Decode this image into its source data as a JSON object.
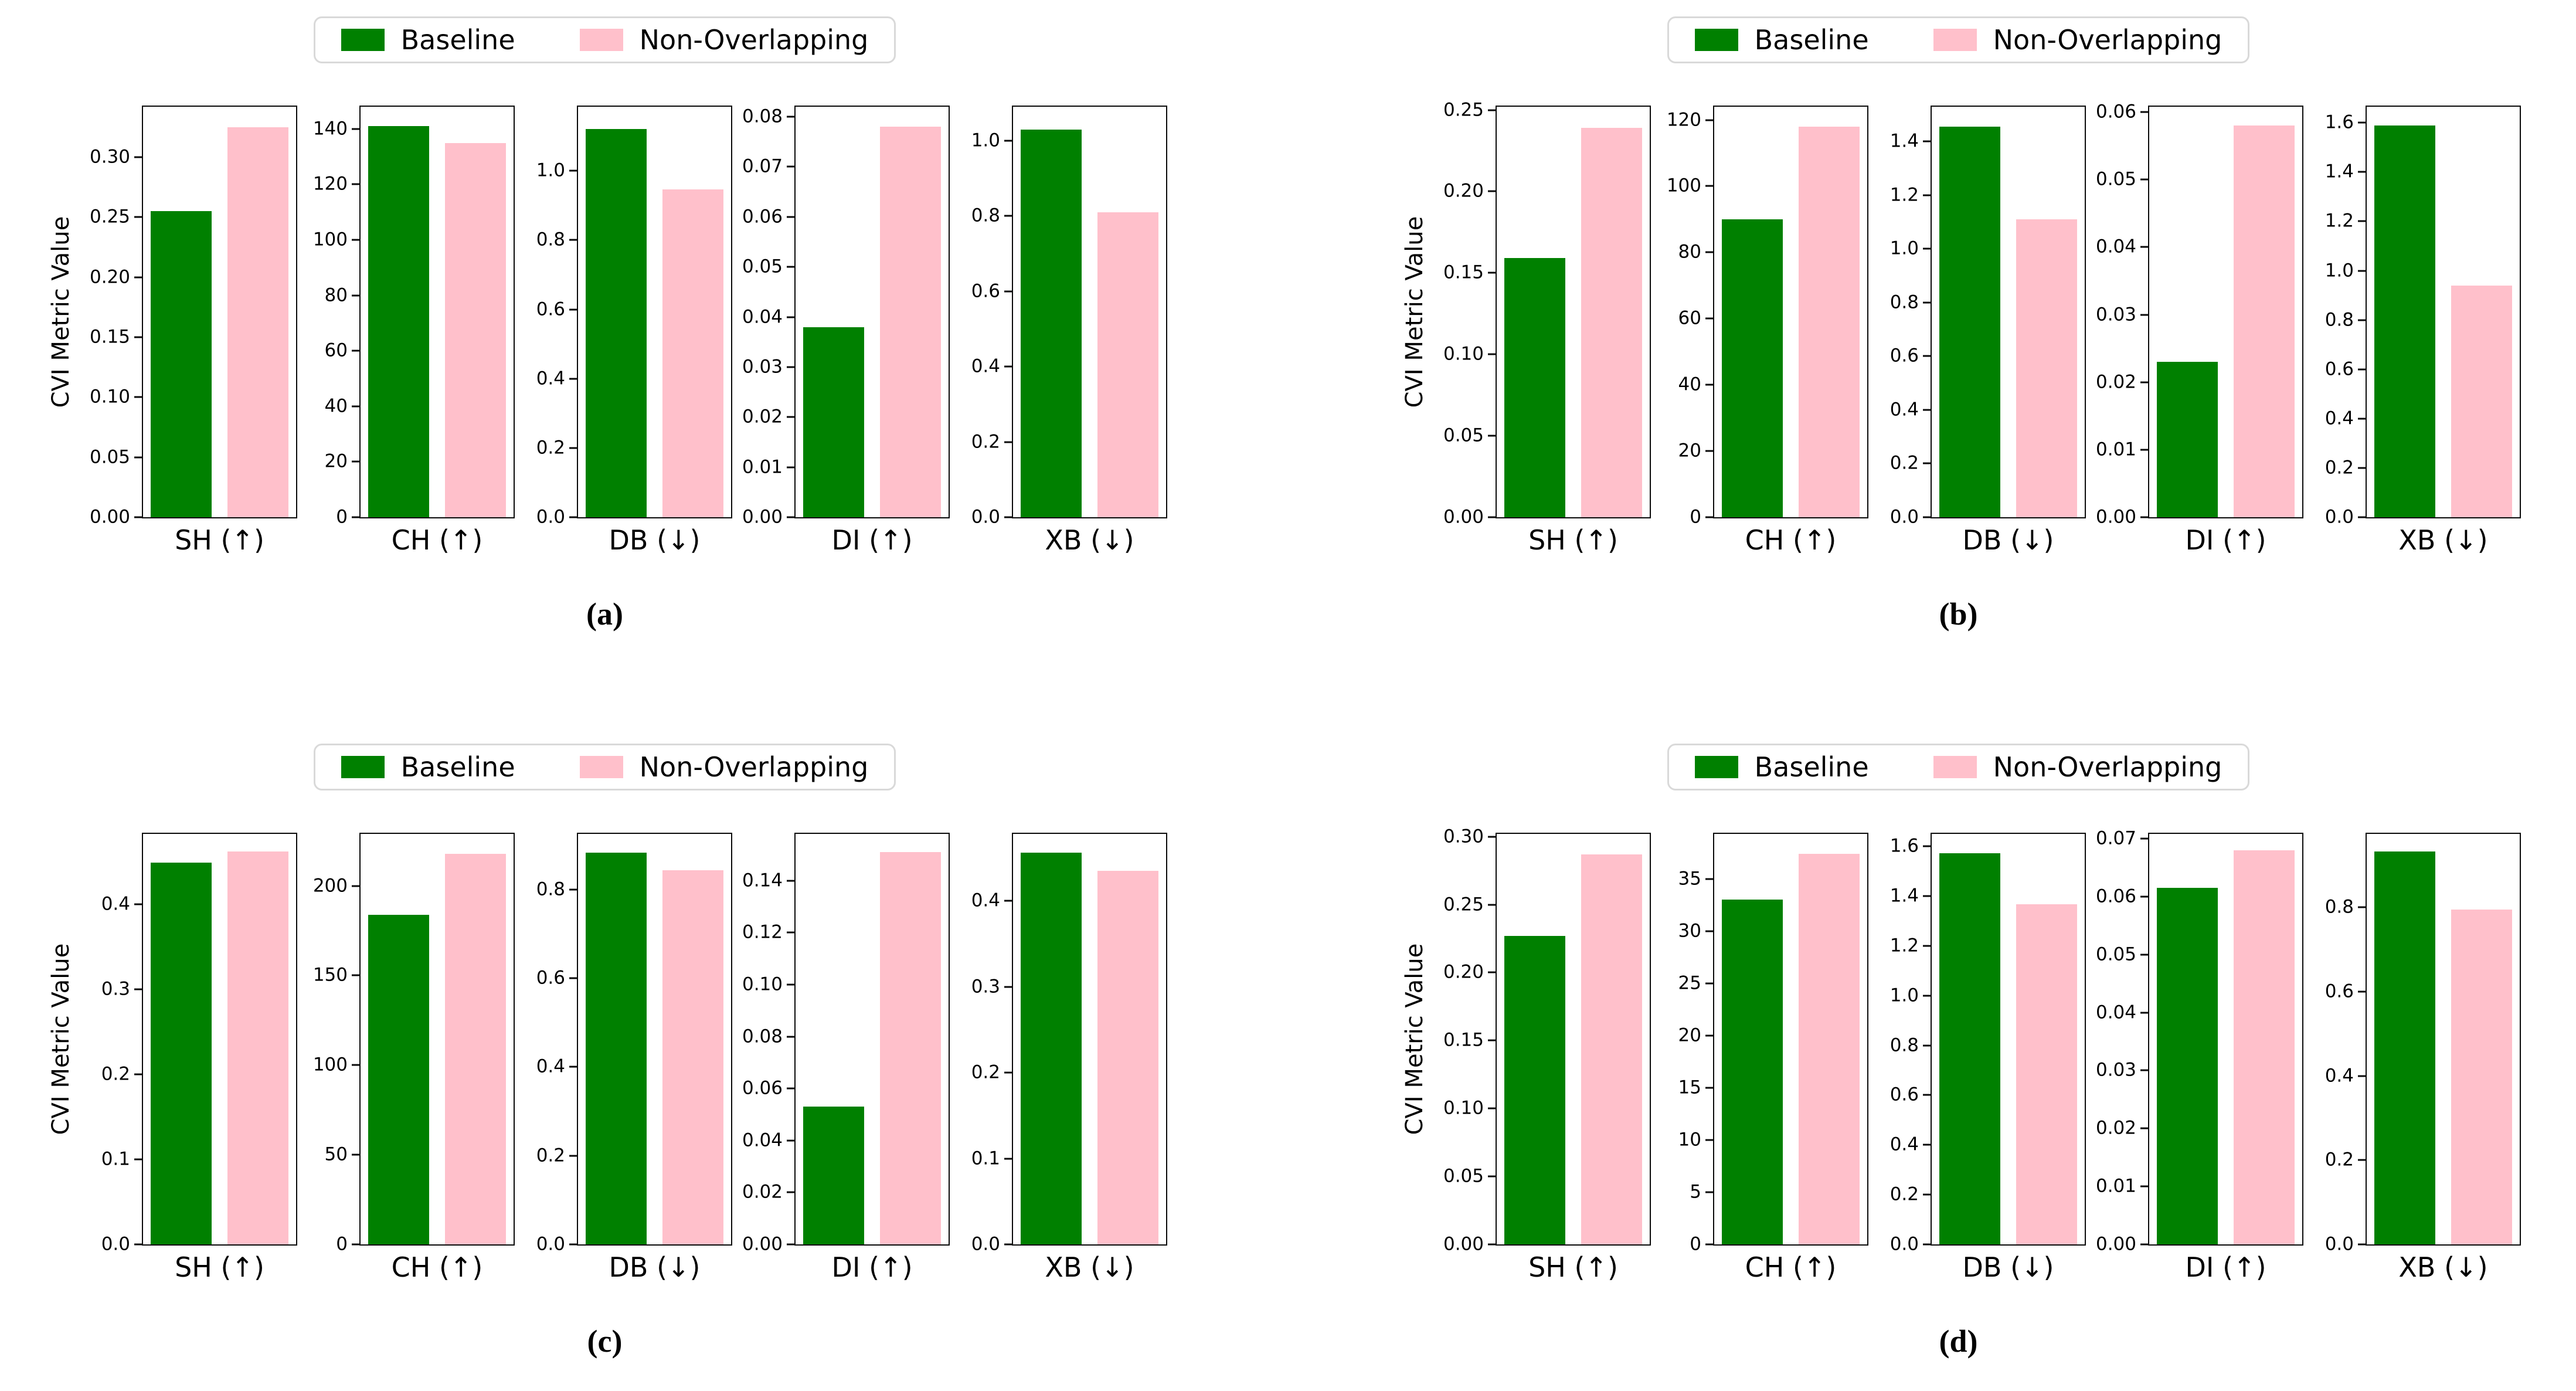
{
  "legend": {
    "items": [
      {
        "label": "Baseline",
        "color": "#008000"
      },
      {
        "label": "Non-Overlapping",
        "color": "#FFC0CB"
      }
    ]
  },
  "chart_data": [
    {
      "panel": "a",
      "caption": "(a)",
      "type": "bar",
      "ylabel": "CVI Metric Value",
      "legend": [
        "Baseline",
        "Non-Overlapping"
      ],
      "charts": [
        {
          "id": "sh",
          "label": "SH (↑)",
          "ylim": [
            0,
            0.342
          ],
          "ticks": [
            0,
            0.05,
            0.1,
            0.15,
            0.2,
            0.25,
            0.3
          ],
          "tick_labels": [
            "0.00",
            "0.05",
            "0.10",
            "0.15",
            "0.20",
            "0.25",
            "0.30"
          ],
          "values": [
            0.255,
            0.325
          ]
        },
        {
          "id": "ch",
          "label": "CH (↑)",
          "ylim": [
            0,
            148
          ],
          "ticks": [
            0,
            20,
            40,
            60,
            80,
            100,
            120,
            140
          ],
          "tick_labels": [
            "0",
            "20",
            "40",
            "60",
            "80",
            "100",
            "120",
            "140"
          ],
          "values": [
            141,
            135
          ]
        },
        {
          "id": "db",
          "label": "DB (↓)",
          "ylim": [
            0,
            1.185
          ],
          "ticks": [
            0,
            0.2,
            0.4,
            0.6,
            0.8,
            1.0
          ],
          "tick_labels": [
            "0.0",
            "0.2",
            "0.4",
            "0.6",
            "0.8",
            "1.0"
          ],
          "values": [
            1.12,
            0.947
          ]
        },
        {
          "id": "di",
          "label": "DI (↑)",
          "ylim": [
            0,
            0.082
          ],
          "ticks": [
            0,
            0.01,
            0.02,
            0.03,
            0.04,
            0.05,
            0.06,
            0.07,
            0.08
          ],
          "tick_labels": [
            "0.00",
            "0.01",
            "0.02",
            "0.03",
            "0.04",
            "0.05",
            "0.06",
            "0.07",
            "0.08"
          ],
          "values": [
            0.038,
            0.078
          ]
        },
        {
          "id": "xb",
          "label": "XB (↓)",
          "ylim": [
            0,
            1.09
          ],
          "ticks": [
            0,
            0.2,
            0.4,
            0.6,
            0.8,
            1.0
          ],
          "tick_labels": [
            "0.0",
            "0.2",
            "0.4",
            "0.6",
            "0.8",
            "1.0"
          ],
          "values": [
            1.03,
            0.81
          ]
        }
      ]
    },
    {
      "panel": "b",
      "caption": "(b)",
      "type": "bar",
      "ylabel": "CVI Metric Value",
      "legend": [
        "Baseline",
        "Non-Overlapping"
      ],
      "charts": [
        {
          "id": "sh",
          "label": "SH (↑)",
          "ylim": [
            0,
            0.252
          ],
          "ticks": [
            0,
            0.05,
            0.1,
            0.15,
            0.2,
            0.25
          ],
          "tick_labels": [
            "0.00",
            "0.05",
            "0.10",
            "0.15",
            "0.20",
            "0.25"
          ],
          "values": [
            0.159,
            0.239
          ]
        },
        {
          "id": "ch",
          "label": "CH (↑)",
          "ylim": [
            0,
            124
          ],
          "ticks": [
            0,
            20,
            40,
            60,
            80,
            100,
            120
          ],
          "tick_labels": [
            "0",
            "20",
            "40",
            "60",
            "80",
            "100",
            "120"
          ],
          "values": [
            90,
            118
          ]
        },
        {
          "id": "db",
          "label": "DB (↓)",
          "ylim": [
            0,
            1.53
          ],
          "ticks": [
            0,
            0.2,
            0.4,
            0.6,
            0.8,
            1.0,
            1.2,
            1.4
          ],
          "tick_labels": [
            "0.0",
            "0.2",
            "0.4",
            "0.6",
            "0.8",
            "1.0",
            "1.2",
            "1.4"
          ],
          "values": [
            1.455,
            1.11
          ]
        },
        {
          "id": "di",
          "label": "DI (↑)",
          "ylim": [
            0,
            0.0608
          ],
          "ticks": [
            0,
            0.01,
            0.02,
            0.03,
            0.04,
            0.05,
            0.06
          ],
          "tick_labels": [
            "0.00",
            "0.01",
            "0.02",
            "0.03",
            "0.04",
            "0.05",
            "0.06"
          ],
          "values": [
            0.023,
            0.058
          ]
        },
        {
          "id": "xb",
          "label": "XB (↓)",
          "ylim": [
            0,
            1.665
          ],
          "ticks": [
            0,
            0.2,
            0.4,
            0.6,
            0.8,
            1.0,
            1.2,
            1.4,
            1.6
          ],
          "tick_labels": [
            "0.0",
            "0.2",
            "0.4",
            "0.6",
            "0.8",
            "1.0",
            "1.2",
            "1.4",
            "1.6"
          ],
          "values": [
            1.59,
            0.94
          ]
        }
      ]
    },
    {
      "panel": "c",
      "caption": "(c)",
      "type": "bar",
      "ylabel": "CVI Metric Value",
      "legend": [
        "Baseline",
        "Non-Overlapping"
      ],
      "charts": [
        {
          "id": "sh",
          "label": "SH (↑)",
          "ylim": [
            0,
            0.483
          ],
          "ticks": [
            0,
            0.1,
            0.2,
            0.3,
            0.4
          ],
          "tick_labels": [
            "0.0",
            "0.1",
            "0.2",
            "0.3",
            "0.4"
          ],
          "values": [
            0.449,
            0.462
          ]
        },
        {
          "id": "ch",
          "label": "CH (↑)",
          "ylim": [
            0,
            229
          ],
          "ticks": [
            0,
            50,
            100,
            150,
            200
          ],
          "tick_labels": [
            "0",
            "50",
            "100",
            "150",
            "200"
          ],
          "values": [
            184,
            218
          ]
        },
        {
          "id": "db",
          "label": "DB (↓)",
          "ylim": [
            0,
            0.925
          ],
          "ticks": [
            0,
            0.2,
            0.4,
            0.6,
            0.8
          ],
          "tick_labels": [
            "0.0",
            "0.2",
            "0.4",
            "0.6",
            "0.8"
          ],
          "values": [
            0.883,
            0.843
          ]
        },
        {
          "id": "di",
          "label": "DI (↑)",
          "ylim": [
            0,
            0.158
          ],
          "ticks": [
            0,
            0.02,
            0.04,
            0.06,
            0.08,
            0.1,
            0.12,
            0.14
          ],
          "tick_labels": [
            "0.00",
            "0.02",
            "0.04",
            "0.06",
            "0.08",
            "0.10",
            "0.12",
            "0.14"
          ],
          "values": [
            0.053,
            0.151
          ]
        },
        {
          "id": "xb",
          "label": "XB (↓)",
          "ylim": [
            0,
            0.478
          ],
          "ticks": [
            0,
            0.1,
            0.2,
            0.3,
            0.4
          ],
          "tick_labels": [
            "0.0",
            "0.1",
            "0.2",
            "0.3",
            "0.4"
          ],
          "values": [
            0.456,
            0.435
          ]
        }
      ]
    },
    {
      "panel": "d",
      "caption": "(d)",
      "type": "bar",
      "ylabel": "CVI Metric Value",
      "legend": [
        "Baseline",
        "Non-Overlapping"
      ],
      "charts": [
        {
          "id": "sh",
          "label": "SH (↑)",
          "ylim": [
            0,
            0.302
          ],
          "ticks": [
            0,
            0.05,
            0.1,
            0.15,
            0.2,
            0.25,
            0.3
          ],
          "tick_labels": [
            "0.00",
            "0.05",
            "0.10",
            "0.15",
            "0.20",
            "0.25",
            "0.30"
          ],
          "values": [
            0.227,
            0.287
          ]
        },
        {
          "id": "ch",
          "label": "CH (↑)",
          "ylim": [
            0,
            39.3
          ],
          "ticks": [
            0,
            5,
            10,
            15,
            20,
            25,
            30,
            35
          ],
          "tick_labels": [
            "0",
            "5",
            "10",
            "15",
            "20",
            "25",
            "30",
            "35"
          ],
          "values": [
            33,
            37.4
          ]
        },
        {
          "id": "db",
          "label": "DB (↓)",
          "ylim": [
            0,
            1.65
          ],
          "ticks": [
            0,
            0.2,
            0.4,
            0.6,
            0.8,
            1.0,
            1.2,
            1.4,
            1.6
          ],
          "tick_labels": [
            "0.0",
            "0.2",
            "0.4",
            "0.6",
            "0.8",
            "1.0",
            "1.2",
            "1.4",
            "1.6"
          ],
          "values": [
            1.573,
            1.368
          ]
        },
        {
          "id": "di",
          "label": "DI (↑)",
          "ylim": [
            0,
            0.0708
          ],
          "ticks": [
            0,
            0.01,
            0.02,
            0.03,
            0.04,
            0.05,
            0.06,
            0.07
          ],
          "tick_labels": [
            "0.00",
            "0.01",
            "0.02",
            "0.03",
            "0.04",
            "0.05",
            "0.06",
            "0.07"
          ],
          "values": [
            0.0615,
            0.068
          ]
        },
        {
          "id": "xb",
          "label": "XB (↓)",
          "ylim": [
            0,
            0.974
          ],
          "ticks": [
            0,
            0.2,
            0.4,
            0.6,
            0.8
          ],
          "tick_labels": [
            "0.0",
            "0.2",
            "0.4",
            "0.6",
            "0.8"
          ],
          "values": [
            0.933,
            0.794
          ]
        }
      ]
    }
  ]
}
